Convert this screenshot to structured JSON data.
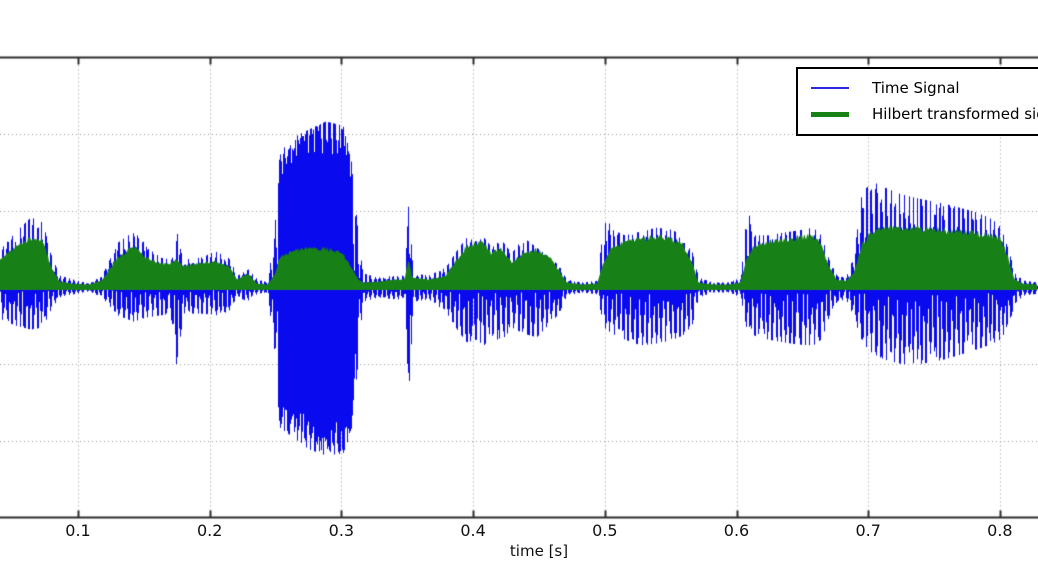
{
  "figure": {
    "background": "#ffffff",
    "axis_color": "#2d2d2d",
    "grid_color": "#9a9a9a",
    "text_color": "#111111"
  },
  "legend": {
    "position": "upper right",
    "entries": [
      {
        "label": "Time Signal",
        "color": "#0a0aee",
        "line_weight": "thin"
      },
      {
        "label": "Hilbert transformed signal",
        "color": "#178117",
        "line_weight": "thick"
      }
    ]
  },
  "chart_data": {
    "type": "line",
    "title": "",
    "xlabel": "time [s]",
    "ylabel": "",
    "x_ticks": [
      0.1,
      0.2,
      0.3,
      0.4,
      0.5,
      0.6,
      0.7,
      0.8
    ],
    "x_tick_labels": [
      "0.1",
      "0.2",
      "0.3",
      "0.4",
      "0.5",
      "0.6",
      "0.7",
      "0.8"
    ],
    "xlim": [
      0.041,
      0.829
    ],
    "ylim": [
      -0.6,
      0.6
    ],
    "y_gridlines": [
      -0.4,
      -0.2,
      0,
      0.2,
      0.4
    ],
    "grid": true,
    "legend_position": "upper right",
    "series": [
      {
        "name": "Time Signal",
        "color": "#0a0aee",
        "style": "dense-oscillation",
        "envelope_t": [
          0.041,
          0.052,
          0.064,
          0.073,
          0.08,
          0.086,
          0.096,
          0.108,
          0.118,
          0.13,
          0.142,
          0.152,
          0.162,
          0.17,
          0.174,
          0.18,
          0.193,
          0.204,
          0.214,
          0.221,
          0.229,
          0.236,
          0.244,
          0.249,
          0.253,
          0.263,
          0.275,
          0.288,
          0.301,
          0.307,
          0.312,
          0.316,
          0.328,
          0.34,
          0.348,
          0.351,
          0.354,
          0.366,
          0.379,
          0.389,
          0.395,
          0.402,
          0.408,
          0.414,
          0.421,
          0.429,
          0.438,
          0.448,
          0.458,
          0.465,
          0.471,
          0.483,
          0.494,
          0.499,
          0.505,
          0.515,
          0.527,
          0.539,
          0.55,
          0.559,
          0.566,
          0.571,
          0.582,
          0.594,
          0.603,
          0.608,
          0.613,
          0.624,
          0.635,
          0.647,
          0.658,
          0.664,
          0.67,
          0.676,
          0.683,
          0.689,
          0.695,
          0.703,
          0.712,
          0.723,
          0.734,
          0.745,
          0.757,
          0.768,
          0.78,
          0.791,
          0.8,
          0.806,
          0.811,
          0.818,
          0.829
        ],
        "upper": [
          0.099,
          0.143,
          0.183,
          0.169,
          0.078,
          0.031,
          0.021,
          0.01,
          0.031,
          0.117,
          0.146,
          0.11,
          0.078,
          0.073,
          0.156,
          0.073,
          0.078,
          0.094,
          0.078,
          0.031,
          0.047,
          0.021,
          0.013,
          0.156,
          0.352,
          0.391,
          0.412,
          0.433,
          0.422,
          0.339,
          0.156,
          0.037,
          0.026,
          0.031,
          0.031,
          0.295,
          0.037,
          0.031,
          0.052,
          0.104,
          0.13,
          0.12,
          0.13,
          0.104,
          0.125,
          0.089,
          0.13,
          0.104,
          0.078,
          0.057,
          0.021,
          0.013,
          0.018,
          0.203,
          0.151,
          0.136,
          0.146,
          0.156,
          0.151,
          0.136,
          0.094,
          0.026,
          0.013,
          0.013,
          0.026,
          0.209,
          0.136,
          0.136,
          0.143,
          0.149,
          0.156,
          0.136,
          0.073,
          0.031,
          0.026,
          0.083,
          0.248,
          0.276,
          0.261,
          0.245,
          0.235,
          0.227,
          0.219,
          0.209,
          0.198,
          0.183,
          0.162,
          0.104,
          0.037,
          0.018,
          0.013
        ],
        "lower": [
          0.083,
          0.099,
          0.11,
          0.104,
          0.052,
          0.026,
          0.018,
          0.01,
          0.026,
          0.073,
          0.089,
          0.078,
          0.073,
          0.068,
          0.209,
          0.068,
          0.068,
          0.073,
          0.063,
          0.026,
          0.037,
          0.016,
          0.013,
          0.183,
          0.365,
          0.391,
          0.422,
          0.438,
          0.433,
          0.378,
          0.209,
          0.037,
          0.026,
          0.031,
          0.031,
          0.326,
          0.037,
          0.031,
          0.063,
          0.117,
          0.143,
          0.136,
          0.151,
          0.125,
          0.143,
          0.104,
          0.12,
          0.13,
          0.094,
          0.068,
          0.021,
          0.013,
          0.018,
          0.104,
          0.12,
          0.136,
          0.151,
          0.146,
          0.138,
          0.125,
          0.099,
          0.026,
          0.013,
          0.013,
          0.026,
          0.117,
          0.125,
          0.136,
          0.143,
          0.149,
          0.151,
          0.136,
          0.083,
          0.037,
          0.031,
          0.078,
          0.143,
          0.172,
          0.188,
          0.198,
          0.203,
          0.196,
          0.188,
          0.177,
          0.164,
          0.151,
          0.136,
          0.104,
          0.042,
          0.021,
          0.016
        ]
      },
      {
        "name": "Hilbert transformed signal",
        "color": "#178117",
        "style": "rectified-envelope-fill",
        "envelope_t": [
          0.041,
          0.052,
          0.064,
          0.073,
          0.08,
          0.086,
          0.096,
          0.108,
          0.118,
          0.13,
          0.142,
          0.152,
          0.162,
          0.17,
          0.174,
          0.18,
          0.193,
          0.204,
          0.214,
          0.221,
          0.229,
          0.236,
          0.244,
          0.249,
          0.253,
          0.263,
          0.275,
          0.288,
          0.301,
          0.307,
          0.312,
          0.316,
          0.328,
          0.34,
          0.348,
          0.351,
          0.354,
          0.366,
          0.379,
          0.389,
          0.395,
          0.402,
          0.408,
          0.414,
          0.421,
          0.429,
          0.438,
          0.448,
          0.458,
          0.465,
          0.471,
          0.483,
          0.494,
          0.499,
          0.505,
          0.515,
          0.527,
          0.539,
          0.55,
          0.559,
          0.566,
          0.571,
          0.582,
          0.594,
          0.603,
          0.608,
          0.613,
          0.624,
          0.635,
          0.647,
          0.658,
          0.664,
          0.67,
          0.676,
          0.683,
          0.689,
          0.695,
          0.703,
          0.712,
          0.723,
          0.734,
          0.745,
          0.757,
          0.768,
          0.78,
          0.791,
          0.8,
          0.806,
          0.811,
          0.818,
          0.829
        ],
        "upper": [
          0.076,
          0.104,
          0.13,
          0.123,
          0.052,
          0.016,
          0.01,
          0.008,
          0.018,
          0.078,
          0.107,
          0.078,
          0.063,
          0.063,
          0.073,
          0.057,
          0.063,
          0.068,
          0.057,
          0.021,
          0.037,
          0.01,
          0.008,
          0.031,
          0.078,
          0.096,
          0.104,
          0.102,
          0.089,
          0.057,
          0.026,
          0.013,
          0.016,
          0.021,
          0.021,
          0.078,
          0.026,
          0.021,
          0.031,
          0.078,
          0.11,
          0.115,
          0.117,
          0.089,
          0.104,
          0.065,
          0.089,
          0.099,
          0.083,
          0.047,
          0.013,
          0.008,
          0.01,
          0.065,
          0.104,
          0.12,
          0.128,
          0.133,
          0.128,
          0.115,
          0.068,
          0.013,
          0.008,
          0.008,
          0.013,
          0.078,
          0.11,
          0.12,
          0.125,
          0.13,
          0.136,
          0.117,
          0.057,
          0.021,
          0.018,
          0.037,
          0.11,
          0.146,
          0.156,
          0.159,
          0.156,
          0.154,
          0.151,
          0.146,
          0.143,
          0.138,
          0.13,
          0.083,
          0.021,
          0.01,
          0.008
        ]
      }
    ]
  }
}
